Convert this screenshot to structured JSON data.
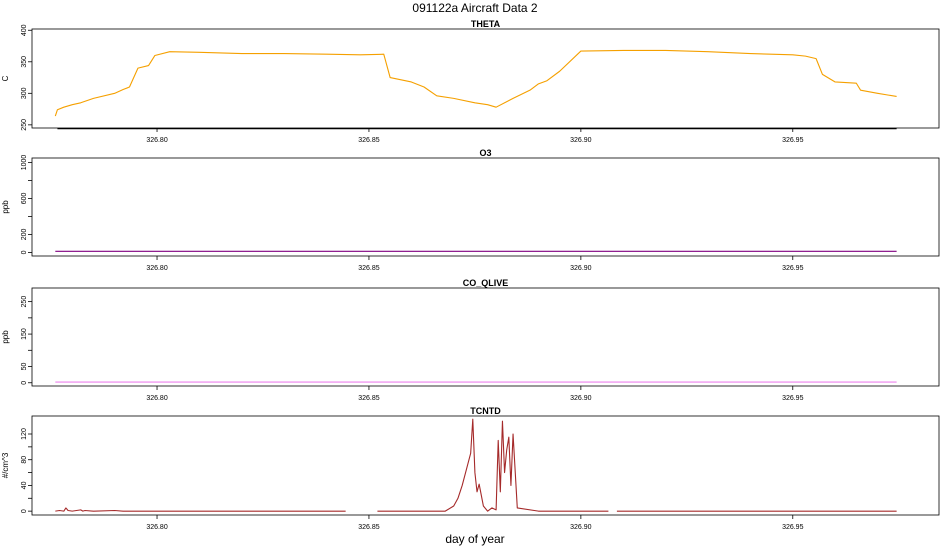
{
  "figure": {
    "title": "091122a   Aircraft Data 2",
    "xlabel": "day of year"
  },
  "chart_data": [
    {
      "type": "line",
      "title": "THETA",
      "ylabel": "C",
      "color": "#f5a000",
      "xlim": [
        326.7705,
        326.9845
      ],
      "ylim": [
        245,
        402
      ],
      "yticks": [
        250,
        300,
        350,
        400
      ],
      "yticklabels": [
        "250",
        "300",
        "350",
        "400"
      ],
      "xticks": [
        326.8,
        326.85,
        326.9,
        326.95
      ],
      "xticklabels": [
        "326.80",
        "326.85",
        "326.90",
        "326.95"
      ],
      "series": [
        {
          "x": [
            326.776,
            326.7765,
            326.778,
            326.78,
            326.782,
            326.785,
            326.79,
            326.792,
            326.7935,
            326.7955,
            326.798,
            326.7995,
            326.803,
            326.81,
            326.82,
            326.83,
            326.84,
            326.848,
            326.8535,
            326.855,
            326.86,
            326.863,
            326.866,
            326.87,
            326.875,
            326.878,
            326.88,
            326.884,
            326.888,
            326.89,
            326.892,
            326.895,
            326.9,
            326.91,
            326.92,
            326.93,
            326.94,
            326.95,
            326.953,
            326.9555,
            326.957,
            326.96,
            326.965,
            326.966,
            326.97,
            326.9745
          ],
          "y": [
            264,
            274,
            278,
            282,
            285,
            292,
            300,
            306,
            310,
            340,
            344,
            360,
            366,
            365,
            363,
            363,
            362,
            361,
            362,
            325,
            318,
            310,
            296,
            292,
            285,
            282,
            278,
            292,
            305,
            315,
            320,
            335,
            367,
            368,
            368,
            366,
            363,
            361,
            359,
            355,
            330,
            318,
            316,
            305,
            300,
            295
          ]
        }
      ]
    },
    {
      "type": "line",
      "title": "O3",
      "ylabel": "ppb",
      "color": "#800080",
      "xlim": [
        326.7705,
        326.9845
      ],
      "ylim": [
        -40,
        1050
      ],
      "yticks": [
        0,
        200,
        400,
        600,
        800,
        1000
      ],
      "yticklabels": [
        "0",
        "200",
        "",
        "600",
        "",
        "1000"
      ],
      "xticks": [
        326.8,
        326.85,
        326.9,
        326.95
      ],
      "xticklabels": [
        "326.80",
        "326.85",
        "326.90",
        "326.95"
      ],
      "series": [
        {
          "x": [
            326.776,
            326.9745
          ],
          "y": [
            12,
            12
          ]
        }
      ]
    },
    {
      "type": "line",
      "title": "CO_QLIVE",
      "ylabel": "ppb",
      "color": "#ee82ee",
      "xlim": [
        326.7705,
        326.9845
      ],
      "ylim": [
        -10,
        292
      ],
      "yticks": [
        0,
        50,
        100,
        150,
        200,
        250
      ],
      "yticklabels": [
        "0",
        "50",
        "",
        "150",
        "",
        "250"
      ],
      "xticks": [
        326.8,
        326.85,
        326.9,
        326.95
      ],
      "xticklabels": [
        "326.80",
        "326.85",
        "326.90",
        "326.95"
      ],
      "series": [
        {
          "x": [
            326.776,
            326.9745
          ],
          "y": [
            2,
            2
          ]
        }
      ]
    },
    {
      "type": "line",
      "title": "TCNTD",
      "ylabel": "#/cm^3",
      "color": "#a52a2a",
      "xlim": [
        326.7705,
        326.9845
      ],
      "ylim": [
        -6,
        148
      ],
      "yticks": [
        0,
        20,
        40,
        60,
        80,
        100,
        120
      ],
      "yticklabels": [
        "0",
        "",
        "40",
        "",
        "80",
        "",
        "120"
      ],
      "xticks": [
        326.8,
        326.85,
        326.9,
        326.95
      ],
      "xticklabels": [
        "326.80",
        "326.85",
        "326.90",
        "326.95"
      ],
      "series": [
        {
          "x": [
            326.776,
            326.777,
            326.778,
            326.7785,
            326.779,
            326.78,
            326.782,
            326.7825,
            326.783,
            326.785,
            326.79,
            326.792,
            326.8445
          ],
          "y": [
            0,
            1,
            0,
            5,
            1,
            0,
            2,
            0,
            1,
            0,
            1,
            0,
            0
          ]
        },
        {
          "x": [
            326.852,
            326.86,
            326.868,
            326.87,
            326.871,
            326.872,
            326.873,
            326.874,
            326.8745,
            326.875,
            326.8755,
            326.876,
            326.877,
            326.878,
            326.879,
            326.88,
            326.8805,
            326.881,
            326.8815,
            326.882,
            326.8825,
            326.883,
            326.8835,
            326.884,
            326.885,
            326.89,
            326.9065
          ],
          "y": [
            0,
            0,
            0,
            8,
            20,
            40,
            65,
            90,
            143,
            60,
            30,
            42,
            8,
            0,
            5,
            2,
            110,
            30,
            140,
            60,
            95,
            115,
            40,
            120,
            5,
            0,
            0
          ]
        },
        {
          "x": [
            326.9085,
            326.94,
            326.9745
          ],
          "y": [
            0,
            0,
            0
          ]
        }
      ]
    }
  ]
}
